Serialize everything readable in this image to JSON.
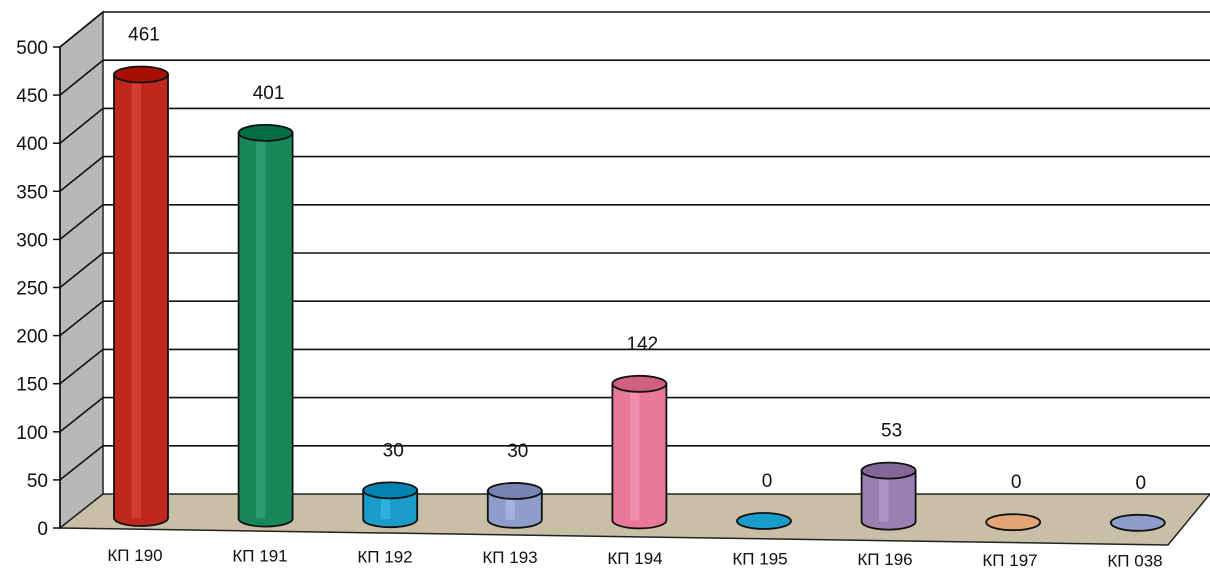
{
  "chart_data": {
    "type": "bar",
    "categories": [
      "КП 190",
      "КП 191",
      "КП 192",
      "КП 193",
      "КП 194",
      "КП 195",
      "КП 196",
      "КП 197",
      "КП 038"
    ],
    "values": [
      461,
      401,
      30,
      30,
      142,
      0,
      53,
      0,
      0
    ],
    "data_labels": [
      "461",
      "401",
      "30",
      "30",
      "142",
      "0",
      "53",
      "0",
      "0"
    ],
    "title": "",
    "xlabel": "",
    "ylabel": "",
    "ylim": [
      0,
      500
    ],
    "yticks": [
      0,
      50,
      100,
      150,
      200,
      250,
      300,
      350,
      400,
      450,
      500
    ],
    "grid": true,
    "legend": "none",
    "colors": [
      "#c0281e",
      "#17875a",
      "#1a9ccb",
      "#8e9dc9",
      "#e8799b",
      "#1a9ccb",
      "#9a80b0",
      "#e3a476",
      "#8e9dc9"
    ]
  }
}
